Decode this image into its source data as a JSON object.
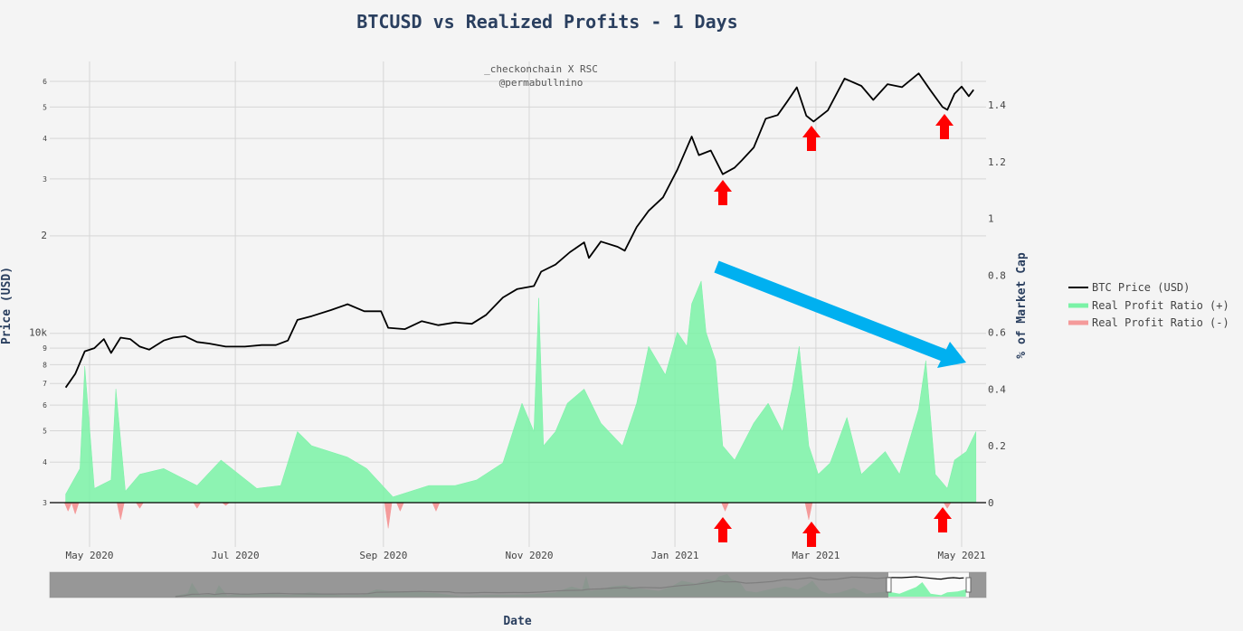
{
  "chart_data": {
    "type": "line",
    "title": "BTCUSD vs Realized Profits - 1 Days",
    "xlabel": "Date",
    "ylabel_left": "Price (USD)",
    "ylabel_right": "% of Market Cap",
    "annotation_lines": [
      "_checkonchain X RSC",
      "@permabullnino"
    ],
    "x_ticks": [
      "May 2020",
      "Jul 2020",
      "Sep 2020",
      "Nov 2020",
      "Jan 2021",
      "Mar 2021",
      "May 2021"
    ],
    "y_left_scale": "log",
    "y_left_ticks": [
      "3",
      "4",
      "5",
      "6",
      "7",
      "8",
      "9",
      "10k",
      "2",
      "3",
      "4",
      "5",
      "6"
    ],
    "y_right_ticks": [
      "0",
      "0.2",
      "0.4",
      "0.6",
      "0.8",
      "1",
      "1.2",
      "1.4"
    ],
    "y_right_range": [
      0,
      1.5
    ],
    "legend": [
      "BTC Price (USD)",
      "Real Profit Ratio (+)",
      "Real Profit Ratio (-)"
    ],
    "legend_position": "right",
    "range_slider": true,
    "colors": {
      "price": "#000000",
      "profit_pos": "#7af2a6",
      "profit_neg": "#f49a9a",
      "arrow_red": "#ff0000",
      "arrow_blue": "#00b0f0",
      "slider_bg": "#8c8c8c"
    },
    "series": [
      {
        "name": "BTC Price (USD)",
        "points": [
          [
            "2020-04-21",
            6800
          ],
          [
            "2020-04-25",
            7500
          ],
          [
            "2020-04-29",
            8800
          ],
          [
            "2020-05-03",
            9000
          ],
          [
            "2020-05-07",
            9600
          ],
          [
            "2020-05-10",
            8700
          ],
          [
            "2020-05-14",
            9700
          ],
          [
            "2020-05-18",
            9600
          ],
          [
            "2020-05-22",
            9100
          ],
          [
            "2020-05-26",
            8900
          ],
          [
            "2020-06-01",
            9500
          ],
          [
            "2020-06-05",
            9700
          ],
          [
            "2020-06-10",
            9800
          ],
          [
            "2020-06-15",
            9400
          ],
          [
            "2020-06-20",
            9300
          ],
          [
            "2020-06-27",
            9100
          ],
          [
            "2020-07-05",
            9100
          ],
          [
            "2020-07-12",
            9200
          ],
          [
            "2020-07-18",
            9200
          ],
          [
            "2020-07-23",
            9500
          ],
          [
            "2020-07-27",
            11000
          ],
          [
            "2020-08-02",
            11300
          ],
          [
            "2020-08-10",
            11800
          ],
          [
            "2020-08-17",
            12300
          ],
          [
            "2020-08-24",
            11700
          ],
          [
            "2020-08-31",
            11700
          ],
          [
            "2020-09-03",
            10400
          ],
          [
            "2020-09-10",
            10300
          ],
          [
            "2020-09-17",
            10900
          ],
          [
            "2020-09-24",
            10600
          ],
          [
            "2020-10-01",
            10800
          ],
          [
            "2020-10-08",
            10700
          ],
          [
            "2020-10-14",
            11400
          ],
          [
            "2020-10-21",
            12900
          ],
          [
            "2020-10-27",
            13700
          ],
          [
            "2020-11-03",
            14000
          ],
          [
            "2020-11-06",
            15500
          ],
          [
            "2020-11-12",
            16300
          ],
          [
            "2020-11-18",
            17800
          ],
          [
            "2020-11-24",
            19100
          ],
          [
            "2020-11-26",
            17100
          ],
          [
            "2020-12-01",
            19200
          ],
          [
            "2020-12-08",
            18500
          ],
          [
            "2020-12-11",
            18000
          ],
          [
            "2020-12-16",
            21300
          ],
          [
            "2020-12-21",
            23900
          ],
          [
            "2020-12-27",
            26300
          ],
          [
            "2021-01-02",
            32000
          ],
          [
            "2021-01-08",
            40500
          ],
          [
            "2021-01-11",
            35500
          ],
          [
            "2021-01-16",
            36700
          ],
          [
            "2021-01-21",
            31000
          ],
          [
            "2021-01-26",
            32500
          ],
          [
            "2021-01-29",
            34200
          ],
          [
            "2021-02-03",
            37500
          ],
          [
            "2021-02-08",
            46000
          ],
          [
            "2021-02-13",
            47200
          ],
          [
            "2021-02-17",
            52000
          ],
          [
            "2021-02-21",
            57500
          ],
          [
            "2021-02-25",
            47000
          ],
          [
            "2021-02-28",
            45100
          ],
          [
            "2021-03-06",
            48800
          ],
          [
            "2021-03-13",
            61200
          ],
          [
            "2021-03-20",
            58100
          ],
          [
            "2021-03-25",
            52600
          ],
          [
            "2021-03-31",
            58800
          ],
          [
            "2021-04-06",
            57600
          ],
          [
            "2021-04-13",
            63500
          ],
          [
            "2021-04-18",
            56200
          ],
          [
            "2021-04-23",
            50000
          ],
          [
            "2021-04-25",
            49000
          ],
          [
            "2021-04-28",
            54900
          ],
          [
            "2021-05-01",
            57800
          ],
          [
            "2021-05-04",
            54000
          ],
          [
            "2021-05-06",
            56500
          ]
        ]
      },
      {
        "name": "Real Profit Ratio (+)",
        "points": [
          [
            "2020-04-21",
            0.03
          ],
          [
            "2020-04-27",
            0.12
          ],
          [
            "2020-04-29",
            0.48
          ],
          [
            "2020-05-03",
            0.05
          ],
          [
            "2020-05-10",
            0.08
          ],
          [
            "2020-05-12",
            0.4
          ],
          [
            "2020-05-16",
            0.04
          ],
          [
            "2020-05-22",
            0.1
          ],
          [
            "2020-06-01",
            0.12
          ],
          [
            "2020-06-15",
            0.06
          ],
          [
            "2020-06-25",
            0.15
          ],
          [
            "2020-07-10",
            0.05
          ],
          [
            "2020-07-20",
            0.06
          ],
          [
            "2020-07-27",
            0.25
          ],
          [
            "2020-08-02",
            0.2
          ],
          [
            "2020-08-17",
            0.16
          ],
          [
            "2020-08-25",
            0.12
          ],
          [
            "2020-09-05",
            0.02
          ],
          [
            "2020-09-20",
            0.06
          ],
          [
            "2020-10-01",
            0.06
          ],
          [
            "2020-10-10",
            0.08
          ],
          [
            "2020-10-21",
            0.14
          ],
          [
            "2020-10-29",
            0.35
          ],
          [
            "2020-11-03",
            0.25
          ],
          [
            "2020-11-05",
            0.72
          ],
          [
            "2020-11-07",
            0.2
          ],
          [
            "2020-11-12",
            0.25
          ],
          [
            "2020-11-17",
            0.35
          ],
          [
            "2020-11-24",
            0.4
          ],
          [
            "2020-12-01",
            0.28
          ],
          [
            "2020-12-10",
            0.2
          ],
          [
            "2020-12-16",
            0.35
          ],
          [
            "2020-12-21",
            0.55
          ],
          [
            "2020-12-28",
            0.45
          ],
          [
            "2021-01-02",
            0.6
          ],
          [
            "2021-01-06",
            0.55
          ],
          [
            "2021-01-08",
            0.7
          ],
          [
            "2021-01-12",
            0.78
          ],
          [
            "2021-01-14",
            0.6
          ],
          [
            "2021-01-18",
            0.5
          ],
          [
            "2021-01-21",
            0.2
          ],
          [
            "2021-01-26",
            0.15
          ],
          [
            "2021-02-03",
            0.28
          ],
          [
            "2021-02-09",
            0.35
          ],
          [
            "2021-02-15",
            0.25
          ],
          [
            "2021-02-19",
            0.4
          ],
          [
            "2021-02-22",
            0.55
          ],
          [
            "2021-02-26",
            0.2
          ],
          [
            "2021-03-02",
            0.1
          ],
          [
            "2021-03-07",
            0.14
          ],
          [
            "2021-03-14",
            0.3
          ],
          [
            "2021-03-20",
            0.1
          ],
          [
            "2021-03-30",
            0.18
          ],
          [
            "2021-04-05",
            0.1
          ],
          [
            "2021-04-13",
            0.33
          ],
          [
            "2021-04-16",
            0.5
          ],
          [
            "2021-04-20",
            0.1
          ],
          [
            "2021-04-25",
            0.05
          ],
          [
            "2021-04-28",
            0.15
          ],
          [
            "2021-05-03",
            0.18
          ],
          [
            "2021-05-07",
            0.25
          ]
        ]
      },
      {
        "name": "Real Profit Ratio (-)",
        "points": [
          [
            "2020-04-22",
            -0.03
          ],
          [
            "2020-04-25",
            -0.04
          ],
          [
            "2020-05-14",
            -0.06
          ],
          [
            "2020-05-22",
            -0.02
          ],
          [
            "2020-06-15",
            -0.02
          ],
          [
            "2020-06-27",
            -0.01
          ],
          [
            "2020-09-03",
            -0.09
          ],
          [
            "2020-09-08",
            -0.03
          ],
          [
            "2020-09-23",
            -0.03
          ],
          [
            "2021-01-22",
            -0.03
          ],
          [
            "2021-02-26",
            -0.06
          ],
          [
            "2021-04-25",
            -0.02
          ]
        ]
      }
    ]
  }
}
